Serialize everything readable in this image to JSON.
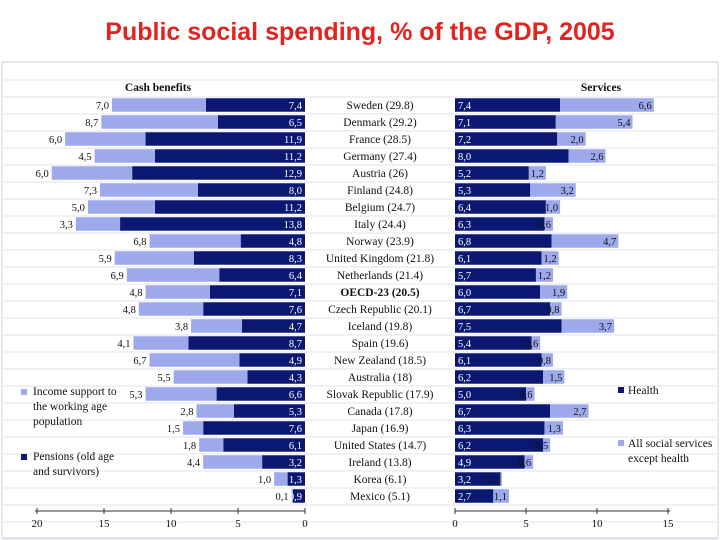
{
  "title": "Public social spending, % of the GDP, 2005",
  "chart_data": {
    "type": "bar",
    "left_panel": {
      "heading": "Cash benefits",
      "axis_ticks": [
        "20",
        "15",
        "10",
        "5",
        "0"
      ],
      "series": [
        {
          "name": "Income support to the working age population",
          "color": "#9da9ea"
        },
        {
          "name": "Pensions (old age and survivors)",
          "color": "#0b1872"
        }
      ]
    },
    "right_panel": {
      "heading": "Services",
      "axis_ticks": [
        "0",
        "5",
        "10",
        "15"
      ],
      "series": [
        {
          "name": "Health",
          "color": "#0b1872"
        },
        {
          "name": "All social services except health",
          "color": "#9da9ea"
        }
      ]
    },
    "legend_left": [
      {
        "color": "#9da9ea",
        "lines": [
          "Income support to",
          "the working age",
          "population"
        ]
      },
      {
        "color": "#0b1872",
        "lines": [
          "Pensions (old age",
          "and survivors)"
        ]
      }
    ],
    "legend_right": [
      {
        "color": "#0b1872",
        "lines": [
          "Health"
        ]
      },
      {
        "color": "#9da9ea",
        "lines": [
          "All social services",
          "except health"
        ]
      }
    ],
    "countries": [
      {
        "label": "Sweden (29.8)",
        "pensions": 7.4,
        "pensions_label": "7,4",
        "income": 7.0,
        "income_label": "7,0",
        "health": 7.4,
        "health_label": "7,4",
        "services": 6.6,
        "services_label": "6,6"
      },
      {
        "label": "Denmark (29.2)",
        "pensions": 6.5,
        "pensions_label": "6,5",
        "income": 8.7,
        "income_label": "8,7",
        "health": 7.1,
        "health_label": "7,1",
        "services": 5.4,
        "services_label": "5,4"
      },
      {
        "label": "France (28.5)",
        "pensions": 11.9,
        "pensions_label": "11,9",
        "income": 6.0,
        "income_label": "6,0",
        "health": 7.2,
        "health_label": "7,2",
        "services": 2.0,
        "services_label": "2,0"
      },
      {
        "label": "Germany (27.4)",
        "pensions": 11.2,
        "pensions_label": "11,2",
        "income": 4.5,
        "income_label": "4,5",
        "health": 8.0,
        "health_label": "8,0",
        "services": 2.6,
        "services_label": "2,6"
      },
      {
        "label": "Austria (26)",
        "pensions": 12.9,
        "pensions_label": "12,9",
        "income": 6.0,
        "income_label": "6,0",
        "health": 5.2,
        "health_label": "5,2",
        "services": 1.2,
        "services_label": "1,2"
      },
      {
        "label": "Finland (24.8)",
        "pensions": 8.0,
        "pensions_label": "8,0",
        "income": 7.3,
        "income_label": "7,3",
        "health": 5.3,
        "health_label": "5,3",
        "services": 3.2,
        "services_label": "3,2"
      },
      {
        "label": "Belgium (24.7)",
        "pensions": 11.2,
        "pensions_label": "11,2",
        "income": 5.0,
        "income_label": "5,0",
        "health": 6.4,
        "health_label": "6,4",
        "services": 1.0,
        "services_label": "1,0"
      },
      {
        "label": "Italy (24.4)",
        "pensions": 13.8,
        "pensions_label": "13,8",
        "income": 3.3,
        "income_label": "3,3",
        "health": 6.3,
        "health_label": "6,3",
        "services": 0.6,
        "services_label": "0,6"
      },
      {
        "label": "Norway (23.9)",
        "pensions": 4.8,
        "pensions_label": "4,8",
        "income": 6.8,
        "income_label": "6,8",
        "health": 6.8,
        "health_label": "6,8",
        "services": 4.7,
        "services_label": "4,7"
      },
      {
        "label": "United Kingdom (21.8)",
        "pensions": 8.3,
        "pensions_label": "8,3",
        "income": 5.9,
        "income_label": "5,9",
        "health": 6.1,
        "health_label": "6,1",
        "services": 1.2,
        "services_label": "1,2"
      },
      {
        "label": "Netherlands (21.4)",
        "pensions": 6.4,
        "pensions_label": "6,4",
        "income": 6.9,
        "income_label": "6,9",
        "health": 5.7,
        "health_label": "5,7",
        "services": 1.2,
        "services_label": "1,2"
      },
      {
        "label": "OECD-23 (20.5)",
        "bold": true,
        "pensions": 7.1,
        "pensions_label": "7,1",
        "income": 4.8,
        "income_label": "4,8",
        "health": 6.0,
        "health_label": "6,0",
        "services": 1.9,
        "services_label": "1,9"
      },
      {
        "label": "Czech Republic (20.1)",
        "pensions": 7.6,
        "pensions_label": "7,6",
        "income": 4.8,
        "income_label": "4,8",
        "health": 6.7,
        "health_label": "6,7",
        "services": 0.8,
        "services_label": "0,8"
      },
      {
        "label": "Iceland (19.8)",
        "pensions": 4.7,
        "pensions_label": "4,7",
        "income": 3.8,
        "income_label": "3,8",
        "health": 7.5,
        "health_label": "7,5",
        "services": 3.7,
        "services_label": "3,7"
      },
      {
        "label": "Spain (19.6)",
        "pensions": 8.7,
        "pensions_label": "8,7",
        "income": 4.1,
        "income_label": "4,1",
        "health": 5.4,
        "health_label": "5,4",
        "services": 0.6,
        "services_label": "0,6"
      },
      {
        "label": "New Zealand (18.5)",
        "pensions": 4.9,
        "pensions_label": "4,9",
        "income": 6.7,
        "income_label": "6,7",
        "health": 6.1,
        "health_label": "6,1",
        "services": 0.8,
        "services_label": "0,8"
      },
      {
        "label": "Australia (18)",
        "pensions": 4.3,
        "pensions_label": "4,3",
        "income": 5.5,
        "income_label": "5,5",
        "health": 6.2,
        "health_label": "6,2",
        "services": 1.5,
        "services_label": "1,5"
      },
      {
        "label": "Slovak Republic (17.9)",
        "pensions": 6.6,
        "pensions_label": "6,6",
        "income": 5.3,
        "income_label": "5,3",
        "health": 5.0,
        "health_label": "5,0",
        "services": 0.6,
        "services_label": "0,6"
      },
      {
        "label": "Canada (17.8)",
        "pensions": 5.3,
        "pensions_label": "5,3",
        "income": 2.8,
        "income_label": "2,8",
        "health": 6.7,
        "health_label": "6,7",
        "services": 2.7,
        "services_label": "2,7"
      },
      {
        "label": "Japan (16.9)",
        "pensions": 7.6,
        "pensions_label": "7,6",
        "income": 1.5,
        "income_label": "1,5",
        "health": 6.3,
        "health_label": "6,3",
        "services": 1.3,
        "services_label": "1,3"
      },
      {
        "label": "United States (14.7)",
        "pensions": 6.1,
        "pensions_label": "6,1",
        "income": 1.8,
        "income_label": "1,8",
        "health": 6.2,
        "health_label": "6,2",
        "services": 0.5,
        "services_label": "0,5"
      },
      {
        "label": "Ireland (13.8)",
        "pensions": 3.2,
        "pensions_label": "3,2",
        "income": 4.4,
        "income_label": "4,4",
        "health": 4.9,
        "health_label": "4,9",
        "services": 0.6,
        "services_label": "0,6"
      },
      {
        "label": "Korea (6.1)",
        "pensions": 1.3,
        "pensions_label": "1,3",
        "income": 1.0,
        "income_label": "1,0",
        "health": 3.2,
        "health_label": "3,2",
        "services": 0.1,
        "services_label": "0,1"
      },
      {
        "label": "Mexico (5.1)",
        "pensions": 0.9,
        "pensions_label": "0,9",
        "income": 0.1,
        "income_label": "0,1",
        "health": 2.7,
        "health_label": "2,7",
        "services": 1.1,
        "services_label": "1,1"
      }
    ]
  }
}
